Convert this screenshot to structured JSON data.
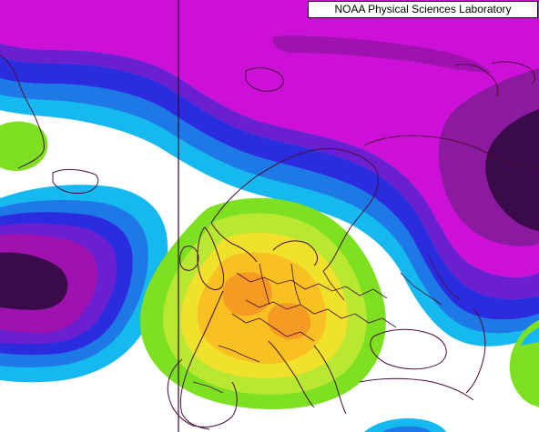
{
  "credit": {
    "text": "NOAA Physical Sciences Laboratory"
  },
  "map": {
    "region": "Europe and North Atlantic",
    "projection": "polar stereographic",
    "fill_palette": {
      "deep_low": "#3a0a4a",
      "purple_low": "#8c1a9e",
      "magenta": "#cc10d8",
      "violet": "#6a1fd0",
      "blue": "#2b2be0",
      "medium_blue": "#1e78e6",
      "light_blue": "#16b8f0",
      "neutral": "#ffffff",
      "green": "#7de021",
      "light_green": "#b8e831",
      "yellow": "#f0e12a",
      "gold": "#f8c020",
      "orange": "#f59a22"
    },
    "border_color": "#4a0d3a",
    "meridian_line_color": "#2d0a2d"
  }
}
